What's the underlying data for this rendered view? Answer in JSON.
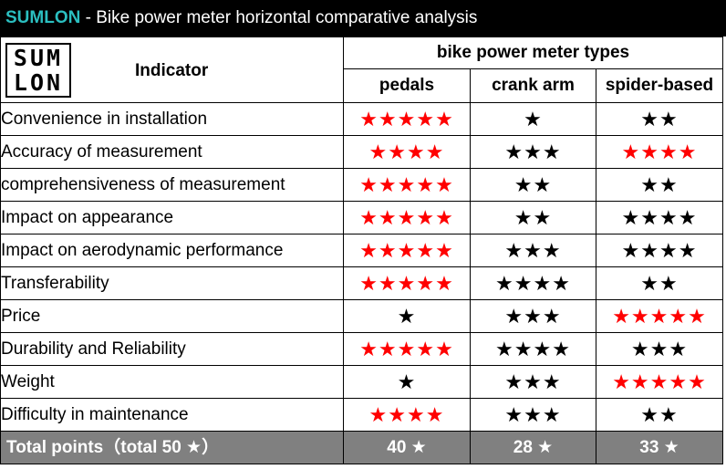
{
  "title": {
    "brand": "SUMLON",
    "text": " - Bike power meter horizontal comparative analysis"
  },
  "logo": {
    "line1": "SUM",
    "line2": "LON"
  },
  "header": {
    "indicator": "Indicator",
    "group": "bike power meter types",
    "columns": [
      "pedals",
      "crank arm",
      "spider-based"
    ]
  },
  "colors": {
    "highlight_star": "#ff0000",
    "normal_star": "#000000",
    "title_brand": "#2bbfc0",
    "total_row_bg": "#808080"
  },
  "rows": [
    {
      "label": "Convenience in installation",
      "cells": [
        {
          "stars": "★★★★★",
          "color": "red"
        },
        {
          "stars": "★",
          "color": "black"
        },
        {
          "stars": "★★",
          "color": "black"
        }
      ]
    },
    {
      "label": "Accuracy  of measurement",
      "cells": [
        {
          "stars": "★★★★",
          "color": "red"
        },
        {
          "stars": "★★★",
          "color": "black"
        },
        {
          "stars": "★★★★",
          "color": "red"
        }
      ]
    },
    {
      "label": "comprehensiveness of measurement",
      "cells": [
        {
          "stars": "★★★★★",
          "color": "red"
        },
        {
          "stars": "★★",
          "color": "black"
        },
        {
          "stars": "★★",
          "color": "black"
        }
      ]
    },
    {
      "label": "Impact on appearance",
      "cells": [
        {
          "stars": "★★★★★",
          "color": "red"
        },
        {
          "stars": "★★",
          "color": "black"
        },
        {
          "stars": "★★★★",
          "color": "black"
        }
      ]
    },
    {
      "label": "Impact on aerodynamic performance",
      "cells": [
        {
          "stars": "★★★★★",
          "color": "red"
        },
        {
          "stars": "★★★",
          "color": "black"
        },
        {
          "stars": "★★★★",
          "color": "black"
        }
      ]
    },
    {
      "label": "Transferability",
      "cells": [
        {
          "stars": "★★★★★",
          "color": "red"
        },
        {
          "stars": "★★★★",
          "color": "black"
        },
        {
          "stars": "★★",
          "color": "black"
        }
      ]
    },
    {
      "label": "Price",
      "cells": [
        {
          "stars": "★",
          "color": "black"
        },
        {
          "stars": "★★★",
          "color": "black"
        },
        {
          "stars": "★★★★★",
          "color": "red"
        }
      ]
    },
    {
      "label": "Durability and Reliability",
      "cells": [
        {
          "stars": "★★★★★",
          "color": "red"
        },
        {
          "stars": "★★★★",
          "color": "black"
        },
        {
          "stars": "★★★",
          "color": "black"
        }
      ]
    },
    {
      "label": "Weight",
      "cells": [
        {
          "stars": "★",
          "color": "black"
        },
        {
          "stars": "★★★",
          "color": "black"
        },
        {
          "stars": "★★★★★",
          "color": "red"
        }
      ]
    },
    {
      "label": "Difficulty in maintenance",
      "cells": [
        {
          "stars": "★★★★",
          "color": "red"
        },
        {
          "stars": "★★★",
          "color": "black"
        },
        {
          "stars": "★★",
          "color": "black"
        }
      ]
    }
  ],
  "total": {
    "label": "Total points（total 50 ★）",
    "values": [
      "40 ★",
      "28 ★",
      "33 ★"
    ]
  }
}
